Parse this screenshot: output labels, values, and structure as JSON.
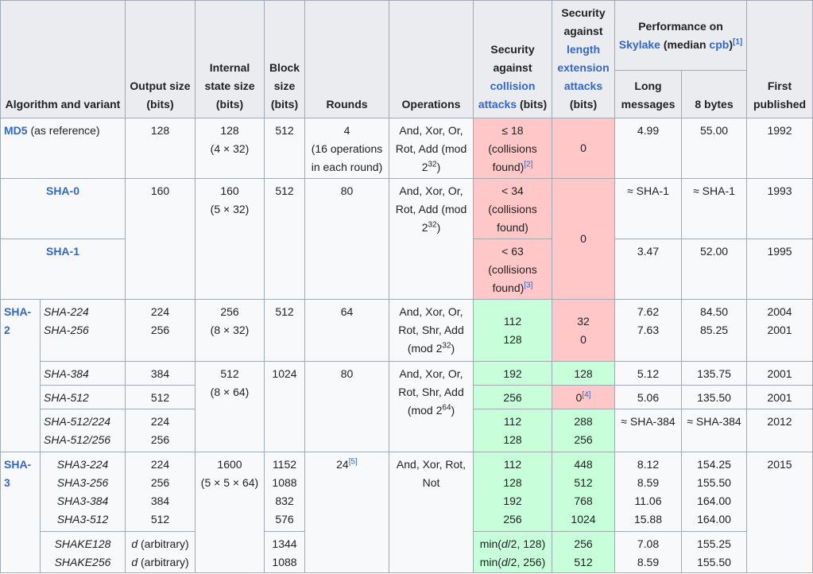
{
  "headers": {
    "algorithm": "Algorithm and variant",
    "output": "Output size (bits)",
    "state": "Internal state size (bits)",
    "block": "Block size (bits)",
    "rounds": "Rounds",
    "operations": "Operations",
    "collision_pre": "Security against ",
    "collision_link": "collision attacks",
    "collision_post": " (bits)",
    "length_pre": "Security against ",
    "length_link": "length extension attacks",
    "length_post": " (bits)",
    "perf_pre": "Performance on ",
    "perf_link": "Skylake",
    "perf_mid": " (median ",
    "perf_link2": "cpb",
    "perf_post": ")",
    "perf_ref": "[1]",
    "long": "Long messages",
    "bytes8": "8 bytes",
    "first": "First published"
  },
  "md5": {
    "name": "MD5",
    "note": " (as reference)",
    "output": "128",
    "state": "128",
    "state_sub": "(4 × 32)",
    "block": "512",
    "rounds": "4",
    "rounds_sub": "(16 operations in each round)",
    "ops": "And, Xor, Or, Rot, Add (mod 2",
    "ops_exp": "32",
    "ops_end": ")",
    "collision": "≤ 18 (collisions found)",
    "collision_ref": "[2]",
    "length": "0",
    "long": "4.99",
    "bytes8": "55.00",
    "year": "1992"
  },
  "sha0": {
    "name": "SHA-0",
    "output": "160",
    "state": "160",
    "state_sub": "(5 × 32)",
    "block": "512",
    "rounds": "80",
    "ops": "And, Xor, Or, Rot, Add (mod 2",
    "ops_exp": "32",
    "ops_end": ")",
    "collision": "< 34 (collisions found)",
    "length": "0",
    "long": "≈ SHA-1",
    "bytes8": "≈ SHA-1",
    "year": "1993"
  },
  "sha1": {
    "name": "SHA-1",
    "collision": "< 63 (collisions found)",
    "collision_ref": "[3]",
    "long": "3.47",
    "bytes8": "52.00",
    "year": "1995"
  },
  "sha2": {
    "family": "SHA-2",
    "g1_names": [
      "SHA-224",
      "SHA-256"
    ],
    "g1_output": [
      "224",
      "256"
    ],
    "g1_state": "256",
    "g1_state_sub": "(8 × 32)",
    "g1_block": "512",
    "g1_rounds": "64",
    "g1_ops": "And, Xor, Or, Rot, Shr, Add (mod 2",
    "g1_ops_exp": "32",
    "g1_ops_end": ")",
    "g1_collision": [
      "112",
      "128"
    ],
    "g1_length": [
      "32",
      "0"
    ],
    "g1_long": [
      "7.62",
      "7.63"
    ],
    "g1_bytes8": [
      "84.50",
      "85.25"
    ],
    "g1_year": [
      "2004",
      "2001"
    ],
    "s384_name": "SHA-384",
    "s384_output": "384",
    "g2_state": "512",
    "g2_state_sub": "(8 × 64)",
    "g2_block": "1024",
    "g2_rounds": "80",
    "g2_ops": "And, Xor, Or, Rot, Shr, Add (mod 2",
    "g2_ops_exp": "64",
    "g2_ops_end": ")",
    "s384_collision": "192",
    "s384_length": "128",
    "s384_long": "5.12",
    "s384_bytes8": "135.75",
    "s384_year": "2001",
    "s512_name": "SHA-512",
    "s512_output": "512",
    "s512_collision": "256",
    "s512_length": "0",
    "s512_length_ref": "[4]",
    "s512_long": "5.06",
    "s512_bytes8": "135.50",
    "s512_year": "2001",
    "t_names": [
      "SHA-512/224",
      "SHA-512/256"
    ],
    "t_output": [
      "224",
      "256"
    ],
    "t_collision": [
      "112",
      "128"
    ],
    "t_length": [
      "288",
      "256"
    ],
    "t_long": "≈ SHA-384",
    "t_bytes8": "≈ SHA-384",
    "t_year": "2012"
  },
  "sha3": {
    "family": "SHA-3",
    "names": [
      "SHA3-224",
      "SHA3-256",
      "SHA3-384",
      "SHA3-512"
    ],
    "output": [
      "224",
      "256",
      "384",
      "512"
    ],
    "state": "1600",
    "state_sub": "(5 × 5 × 64)",
    "block": [
      "1152",
      "1088",
      "832",
      "576"
    ],
    "rounds": "24",
    "rounds_ref": "[5]",
    "ops": "And, Xor, Rot, Not",
    "collision": [
      "112",
      "128",
      "192",
      "256"
    ],
    "length": [
      "448",
      "512",
      "768",
      "1024"
    ],
    "long": [
      "8.12",
      "8.59",
      "11.06",
      "15.88"
    ],
    "bytes8": [
      "154.25",
      "155.50",
      "164.00",
      "164.00"
    ],
    "year": "2015",
    "shake_names": [
      "SHAKE128",
      "SHAKE256"
    ],
    "shake_output_var": "d",
    "shake_output_text": " (arbitrary)",
    "shake_block": [
      "1344",
      "1088"
    ],
    "shake_collision_pre": "min(",
    "shake_collision_var": "d",
    "shake_collision_mid": [
      "/2, 128)",
      "/2, 256)"
    ],
    "shake_length": [
      "256",
      "512"
    ],
    "shake_long": [
      "7.08",
      "8.59"
    ],
    "shake_bytes8": [
      "155.25",
      "155.50"
    ]
  }
}
